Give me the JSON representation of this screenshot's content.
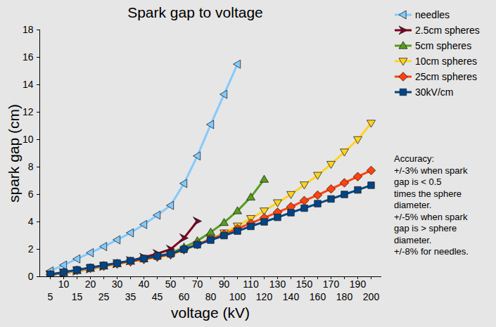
{
  "chart_data": {
    "type": "line",
    "title": "Spark gap to voltage",
    "x_label": "voltage (kV)",
    "y_label": "spark gap (cm)",
    "categories": [
      5,
      10,
      15,
      20,
      25,
      30,
      35,
      40,
      45,
      50,
      60,
      70,
      80,
      90,
      100,
      110,
      120,
      130,
      140,
      150,
      160,
      170,
      180,
      190,
      200
    ],
    "series": [
      {
        "name": "needles",
        "color": "#83caff",
        "marker": "triangle-left",
        "values": [
          0.42,
          0.85,
          1.3,
          1.75,
          2.2,
          2.69,
          3.2,
          3.81,
          4.49,
          5.2,
          6.8,
          8.81,
          11.1,
          13.3,
          15.5,
          null,
          null,
          null,
          null,
          null,
          null,
          null,
          null,
          null,
          null
        ]
      },
      {
        "name": "2.5cm spheres",
        "color": "#7e0021",
        "marker": "arrow-right",
        "values": [
          0.13,
          0.27,
          0.42,
          0.58,
          0.76,
          0.95,
          1.17,
          1.41,
          1.68,
          2.0,
          2.82,
          4.05,
          null,
          null,
          null,
          null,
          null,
          null,
          null,
          null,
          null,
          null,
          null,
          null,
          null
        ]
      },
      {
        "name": "5cm spheres",
        "color": "#579d1c",
        "marker": "triangle-up",
        "values": [
          0.15,
          0.29,
          0.44,
          0.6,
          0.77,
          0.94,
          1.12,
          1.3,
          1.5,
          1.71,
          2.15,
          2.61,
          3.25,
          3.95,
          4.8,
          5.8,
          7.1,
          null,
          null,
          null,
          null,
          null,
          null,
          null,
          null
        ]
      },
      {
        "name": "10cm spheres",
        "color": "#ffd320",
        "marker": "triangle-down",
        "values": [
          0.15,
          0.29,
          0.44,
          0.6,
          0.75,
          0.91,
          1.07,
          1.24,
          1.41,
          1.58,
          1.95,
          2.34,
          2.75,
          3.2,
          3.7,
          4.25,
          4.8,
          5.4,
          6.0,
          6.7,
          7.4,
          8.2,
          9.1,
          10.0,
          11.2
        ]
      },
      {
        "name": "25cm spheres",
        "color": "#ff420e",
        "marker": "diamond",
        "values": [
          0.16,
          0.32,
          0.48,
          0.64,
          0.8,
          0.96,
          1.12,
          1.28,
          1.45,
          1.62,
          2.0,
          2.35,
          2.75,
          3.1,
          3.5,
          3.9,
          4.3,
          4.7,
          5.1,
          5.55,
          5.95,
          6.4,
          6.85,
          7.3,
          7.75
        ]
      },
      {
        "name": "30kV/cm",
        "color": "#004586",
        "marker": "square",
        "values": [
          0.17,
          0.33,
          0.5,
          0.67,
          0.83,
          1.0,
          1.17,
          1.33,
          1.5,
          1.67,
          2.0,
          2.33,
          2.67,
          3.0,
          3.33,
          3.67,
          4.0,
          4.33,
          4.67,
          5.0,
          5.33,
          5.67,
          6.0,
          6.33,
          6.67
        ]
      }
    ],
    "ylim": [
      0,
      18
    ],
    "yticks": [
      0,
      2,
      4,
      6,
      8,
      10,
      12,
      14,
      16,
      18
    ],
    "grid": false,
    "legend": "right",
    "annotation": [
      "Accuracy:",
      "+/-3% when spark",
      "gap is < 0.5",
      "times the sphere",
      "diameter.",
      "+/-5% when spark",
      "gap is > sphere",
      "diameter.",
      "+/-8% for needles."
    ]
  }
}
